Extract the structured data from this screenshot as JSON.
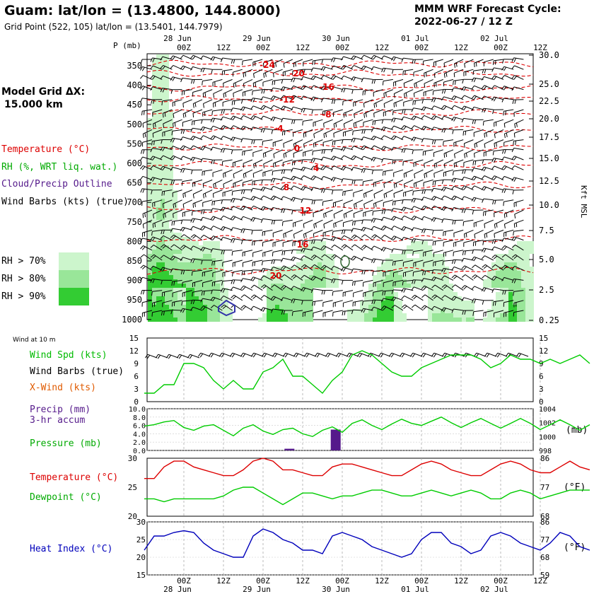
{
  "header": {
    "title": "Guam:  lat/lon = (13.4800, 144.8000)",
    "grid_point": "Grid Point (522, 105) lat/lon = (13.5401, 144.7979)",
    "model_title": "MMM WRF Forecast Cycle:",
    "cycle": "2022-06-27 / 12  Z"
  },
  "left_panel": {
    "grid_label": "Model Grid ΔX:",
    "grid_value": "15.000 km",
    "legend_temp": "Temperature (°C)",
    "legend_rh": "RH (%, WRT liq. wat.)",
    "legend_cloud": "Cloud/Precip Outline",
    "legend_barbs": "Wind Barbs (kts) (true)",
    "rh70": "RH > 70%",
    "rh80": "RH > 80%",
    "rh90": "RH > 90%",
    "wind_at": "Wind at 10 m",
    "wind_spd": "Wind Spd (kts)",
    "wind_barbs": "Wind Barbs (true)",
    "xwind": "X-Wind (kts)",
    "precip": "Precip (mm)",
    "precip2": "3-hr accum",
    "pressure": "Pressure (mb)",
    "temperature": "Temperature (°C)",
    "dewpoint": "Dewpoint (°C)",
    "heat_index": "Heat Index (°C)"
  },
  "colors": {
    "red": "#dd0000",
    "green": "#00cc00",
    "purple": "#551a8b",
    "blue": "#0000bb",
    "rh70": "#ccf5cc",
    "rh80": "#99e699",
    "rh90": "#33cc33"
  },
  "chart_data": [
    {
      "type": "heatmap",
      "name": "upper-air cross section",
      "time_ticks": [
        "00Z",
        "12Z",
        "00Z",
        "12Z",
        "00Z",
        "12Z",
        "00Z",
        "12Z",
        "00Z",
        "12Z"
      ],
      "date_labels": [
        "28 Jun",
        "29 Jun",
        "30 Jun",
        "01 Jul",
        "02 Jul"
      ],
      "pressure_label": "P (mb)",
      "pressure_levels": [
        "350",
        "400",
        "450",
        "500",
        "550",
        "600",
        "650",
        "700",
        "750",
        "800",
        "850",
        "900",
        "950",
        "1000"
      ],
      "height_ticks": [
        "30.0",
        "25.0",
        "22.5",
        "20.0",
        "17.5",
        "15.0",
        "12.5",
        "10.0",
        "7.5",
        "5.0",
        "2.5",
        "0.25"
      ],
      "height_axis_label": "Kft MSL",
      "isotherm_labels": [
        "-24",
        "-20",
        "-16",
        "-12",
        "-8",
        "-4",
        "0",
        "4",
        "8",
        "12",
        "16",
        "20"
      ]
    },
    {
      "type": "line",
      "name": "10 m wind speed",
      "ylim": [
        0,
        15
      ],
      "ticks": [
        "15",
        "12",
        "9",
        "6",
        "3",
        "0"
      ],
      "x_hours": [
        0,
        3,
        6,
        9,
        12,
        15,
        18,
        21,
        24,
        27,
        30,
        33,
        36,
        39,
        42,
        45,
        48,
        51,
        54,
        57,
        60,
        63,
        66,
        69,
        72,
        75,
        78,
        81,
        84,
        87,
        90,
        93,
        96,
        99,
        102,
        105,
        108,
        111,
        114,
        117,
        120,
        123,
        126,
        129,
        132,
        135
      ],
      "wind_speed_kts": [
        2,
        2,
        4,
        4,
        9,
        9,
        8,
        5,
        3,
        5,
        3,
        3,
        7,
        8,
        10,
        6,
        6,
        4,
        2,
        5,
        7,
        11,
        12,
        11,
        9,
        7,
        6,
        6,
        8,
        9,
        10,
        11,
        11,
        11,
        10,
        8,
        9,
        11,
        10,
        10,
        9,
        10,
        9,
        10,
        11,
        9
      ]
    },
    {
      "type": "line",
      "name": "precipitation and pressure",
      "precip_ylim": [
        0,
        10
      ],
      "precip_ticks": [
        "10.0",
        "8.0",
        "6.0",
        "4.0",
        "2.0",
        "0.0"
      ],
      "pressure_ylim": [
        998,
        1004
      ],
      "pressure_ticks": [
        "1004",
        "1002",
        "1000",
        "998"
      ],
      "pressure_unit": "(mb)",
      "precip_mm": [
        {
          "x": 44,
          "v": 0.4
        },
        {
          "x": 58,
          "v": 5.0
        }
      ],
      "x_hours": [
        0,
        3,
        6,
        9,
        12,
        15,
        18,
        21,
        24,
        27,
        30,
        33,
        36,
        39,
        42,
        45,
        48,
        51,
        54,
        57,
        60,
        63,
        66,
        69,
        72,
        75,
        78,
        81,
        84,
        87,
        90,
        93,
        96,
        99,
        102,
        105,
        108,
        111,
        114,
        117,
        120,
        123,
        126,
        129,
        132,
        135
      ],
      "pressure_mb": [
        1001.5,
        1001.7,
        1002.1,
        1002.3,
        1001.3,
        1000.9,
        1001.5,
        1001.7,
        1000.9,
        1000.1,
        1001.2,
        1001.7,
        1000.8,
        1000.3,
        1001.0,
        1001.2,
        1000.4,
        1000.0,
        1000.9,
        1001.4,
        1000.6,
        1001.9,
        1002.4,
        1001.6,
        1001.0,
        1001.8,
        1002.5,
        1001.9,
        1001.6,
        1002.2,
        1002.8,
        1002.0,
        1001.3,
        1002.0,
        1002.6,
        1001.9,
        1001.2,
        1001.9,
        1002.6,
        1001.9,
        1001.0,
        1001.7,
        1002.4,
        1001.7,
        1000.9,
        1001.7
      ]
    },
    {
      "type": "line",
      "name": "temperature and dewpoint",
      "ylim": [
        20,
        30
      ],
      "left_ticks": [
        "30",
        "25",
        "20"
      ],
      "right_ticks": [
        "86",
        "77",
        "68"
      ],
      "right_unit": "(°F)",
      "x_hours": [
        0,
        3,
        6,
        9,
        12,
        15,
        18,
        21,
        24,
        27,
        30,
        33,
        36,
        39,
        42,
        45,
        48,
        51,
        54,
        57,
        60,
        63,
        66,
        69,
        72,
        75,
        78,
        81,
        84,
        87,
        90,
        93,
        96,
        99,
        102,
        105,
        108,
        111,
        114,
        117,
        120,
        123,
        126,
        129,
        132,
        135
      ],
      "temperature_c": [
        26.5,
        26.5,
        28.5,
        29.5,
        29.5,
        28.5,
        28,
        27.5,
        27,
        27,
        28,
        29.5,
        30,
        29.5,
        28,
        28,
        27.5,
        27,
        27,
        28.5,
        29,
        29,
        28.5,
        28,
        27.5,
        27,
        27,
        28,
        29,
        29.5,
        29,
        28,
        27.5,
        27,
        27,
        28,
        29,
        29.5,
        29,
        28,
        27.5,
        27.5,
        28.5,
        29.5,
        28.5,
        28
      ],
      "dewpoint_c": [
        23,
        23,
        22.5,
        23,
        23,
        23,
        23,
        23,
        23.5,
        24.5,
        25,
        25,
        24,
        23,
        22,
        23,
        24,
        24,
        23.5,
        23,
        23.5,
        23.5,
        24,
        24.5,
        24.5,
        24,
        23.5,
        23.5,
        24,
        24.5,
        24,
        23.5,
        24,
        24.5,
        24,
        23,
        23,
        24,
        24.5,
        24,
        23,
        23.5,
        24,
        24.5,
        24.5,
        24.5
      ]
    },
    {
      "type": "line",
      "name": "heat index",
      "ylim": [
        15,
        30
      ],
      "left_ticks": [
        "30",
        "25",
        "20",
        "15"
      ],
      "right_ticks": [
        "86",
        "77",
        "68",
        "59"
      ],
      "right_unit": "(°F)",
      "x_hours": [
        0,
        3,
        6,
        9,
        12,
        15,
        18,
        21,
        24,
        27,
        30,
        33,
        36,
        39,
        42,
        45,
        48,
        51,
        54,
        57,
        60,
        63,
        66,
        69,
        72,
        75,
        78,
        81,
        84,
        87,
        90,
        93,
        96,
        99,
        102,
        105,
        108,
        111,
        114,
        117,
        120,
        123,
        126,
        129,
        132,
        135
      ],
      "heat_index_c": [
        22,
        26,
        26,
        27,
        27.5,
        27,
        24,
        22,
        21,
        20,
        20,
        26,
        28,
        27,
        25,
        24,
        22,
        22,
        21,
        26,
        27,
        26,
        25,
        23,
        22,
        21,
        20,
        21,
        25,
        27,
        27,
        24,
        23,
        21,
        22,
        26,
        27,
        26,
        24,
        23,
        22,
        24,
        27,
        26,
        23,
        22
      ]
    }
  ]
}
